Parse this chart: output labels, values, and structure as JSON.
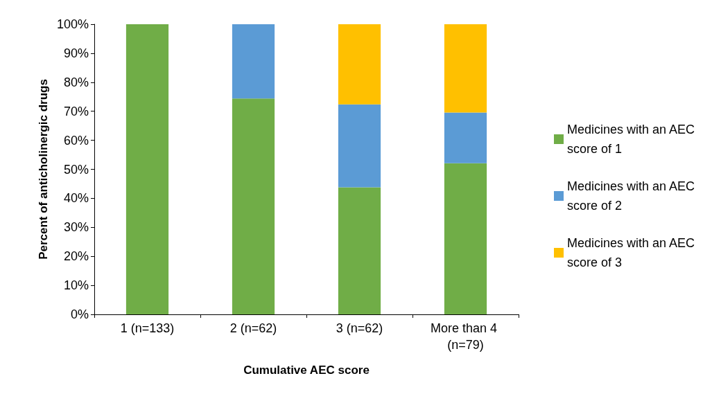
{
  "chart_data": {
    "type": "bar",
    "stacked": true,
    "xlabel": "Cumulative AEC score",
    "ylabel": "Percent of anticholinergic drugs",
    "categories": [
      "1 (n=133)",
      "2 (n=62)",
      "3 (n=62)",
      "More than 4 (n=79)"
    ],
    "series": [
      {
        "name": "Medicines with an AEC score of 1",
        "color": "#70ad47",
        "values": [
          100,
          74.4,
          43.8,
          52.1
        ]
      },
      {
        "name": "Medicines with an AEC score of 2",
        "color": "#5b9bd5",
        "values": [
          0,
          25.6,
          28.6,
          17.5
        ]
      },
      {
        "name": "Medicines with an AEC score of 3",
        "color": "#ffc000",
        "values": [
          0,
          0,
          27.6,
          30.4
        ]
      }
    ],
    "ylim": [
      0,
      100
    ],
    "yticks": [
      {
        "value": 0,
        "label": "0%"
      },
      {
        "value": 10,
        "label": "10%"
      },
      {
        "value": 20,
        "label": "20%"
      },
      {
        "value": 30,
        "label": "30%"
      },
      {
        "value": 40,
        "label": "40%"
      },
      {
        "value": 50,
        "label": "50%"
      },
      {
        "value": 60,
        "label": "60%"
      },
      {
        "value": 70,
        "label": "70%"
      },
      {
        "value": 80,
        "label": "80%"
      },
      {
        "value": 90,
        "label": "90%"
      },
      {
        "value": 100,
        "label": "100%"
      }
    ],
    "grid": false,
    "legend": "right"
  }
}
